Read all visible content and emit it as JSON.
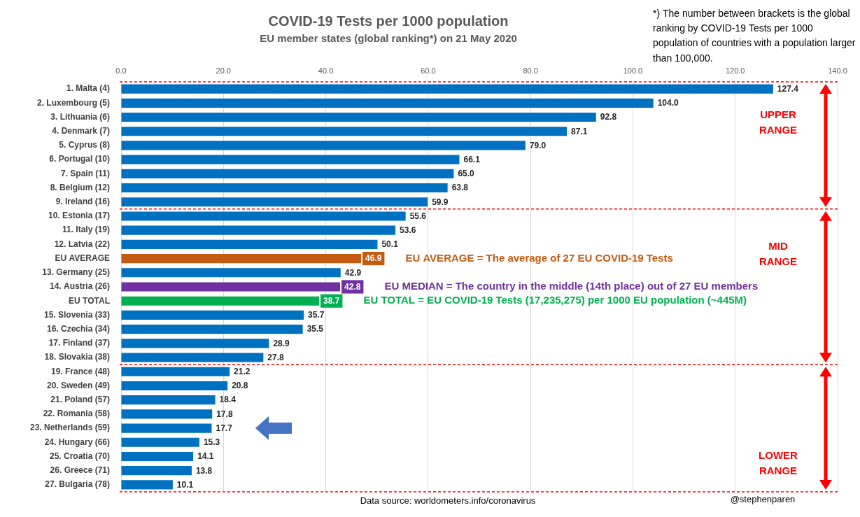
{
  "chart_data": {
    "type": "bar",
    "orientation": "horizontal",
    "title": "COVID-19 Tests per 1000 population",
    "subtitle": "EU member states (global ranking*) on 21 May 2020",
    "footnote": "*) The number between brackets is the global ranking by COVID-19 Tests per 1000 population of countries with a population larger than 100,000.",
    "source": "Data source: worldometers.info/coronavirus",
    "credit": "@stephenparen",
    "range_labels": [
      "UPPER RANGE",
      "MID RANGE",
      "LOWER RANGE"
    ],
    "annotations": [
      {
        "text": "EU AVERAGE = The average of 27 EU COVID-19 Tests",
        "category": "EU AVERAGE"
      },
      {
        "text": "EU MEDIAN = The country in the middle (14th place) out of 27 EU members",
        "category": "14. Austria (26)"
      },
      {
        "text": "EU TOTAL = EU COVID-19 Tests (17,235,275) per 1000 EU population (~445M)",
        "category": "EU TOTAL"
      }
    ],
    "categories": [
      "1. Malta (4)",
      "2. Luxembourg (5)",
      "3. Lithuania (6)",
      "4. Denmark (7)",
      "5. Cyprus (8)",
      "6. Portugal (10)",
      "7. Spain (11)",
      "8. Belgium (12)",
      "9. Ireland (16)",
      "10. Estonia (17)",
      "11. Italy (19)",
      "12. Latvia (22)",
      "EU AVERAGE",
      "13. Germany (25)",
      "14. Austria (26)",
      "EU TOTAL",
      "15. Slovenia (33)",
      "16. Czechia (34)",
      "17. Finland (37)",
      "18. Slovakia (38)",
      "19. France (48)",
      "20. Sweden (49)",
      "21. Poland (57)",
      "22. Romania (58)",
      "23. Netherlands (59)",
      "24. Hungary (66)",
      "25. Croatia (70)",
      "26. Greece (71)",
      "27. Bulgaria (78)"
    ],
    "values": [
      127.4,
      104.0,
      92.8,
      87.1,
      79.0,
      66.1,
      65.0,
      63.8,
      59.9,
      55.6,
      53.6,
      50.1,
      46.9,
      42.9,
      42.8,
      38.7,
      35.7,
      35.5,
      28.9,
      27.8,
      21.2,
      20.8,
      18.4,
      17.8,
      17.7,
      15.3,
      14.1,
      13.8,
      10.1
    ],
    "value_labels": [
      "127.4",
      "104.0",
      "92.8",
      "87.1",
      "79.0",
      "66.1",
      "65.0",
      "63.8",
      "59.9",
      "55.6",
      "53.6",
      "50.1",
      "46.9",
      "42.9",
      "42.8",
      "38.7",
      "35.7",
      "35.5",
      "28.9",
      "27.8",
      "21.2",
      "20.8",
      "18.4",
      "17.8",
      "17.7",
      "15.3",
      "14.1",
      "13.8",
      "10.1"
    ],
    "colors": [
      "#0070c0",
      "#0070c0",
      "#0070c0",
      "#0070c0",
      "#0070c0",
      "#0070c0",
      "#0070c0",
      "#0070c0",
      "#0070c0",
      "#0070c0",
      "#0070c0",
      "#0070c0",
      "#c55a11",
      "#0070c0",
      "#7030a0",
      "#00b050",
      "#0070c0",
      "#0070c0",
      "#0070c0",
      "#0070c0",
      "#0070c0",
      "#0070c0",
      "#0070c0",
      "#0070c0",
      "#0070c0",
      "#0070c0",
      "#0070c0",
      "#0070c0",
      "#0070c0"
    ],
    "xlim": [
      0,
      140
    ],
    "xticks": [
      {
        "value": 0,
        "label": "0.0"
      },
      {
        "value": 20,
        "label": "20.0"
      },
      {
        "value": 40,
        "label": "40.0"
      },
      {
        "value": 60,
        "label": "60.0"
      },
      {
        "value": 80,
        "label": "80.0"
      },
      {
        "value": 100,
        "label": "100.0"
      },
      {
        "value": 120,
        "label": "120.0"
      },
      {
        "value": 140,
        "label": "140.0"
      }
    ],
    "grid": true,
    "data_labels": true
  }
}
